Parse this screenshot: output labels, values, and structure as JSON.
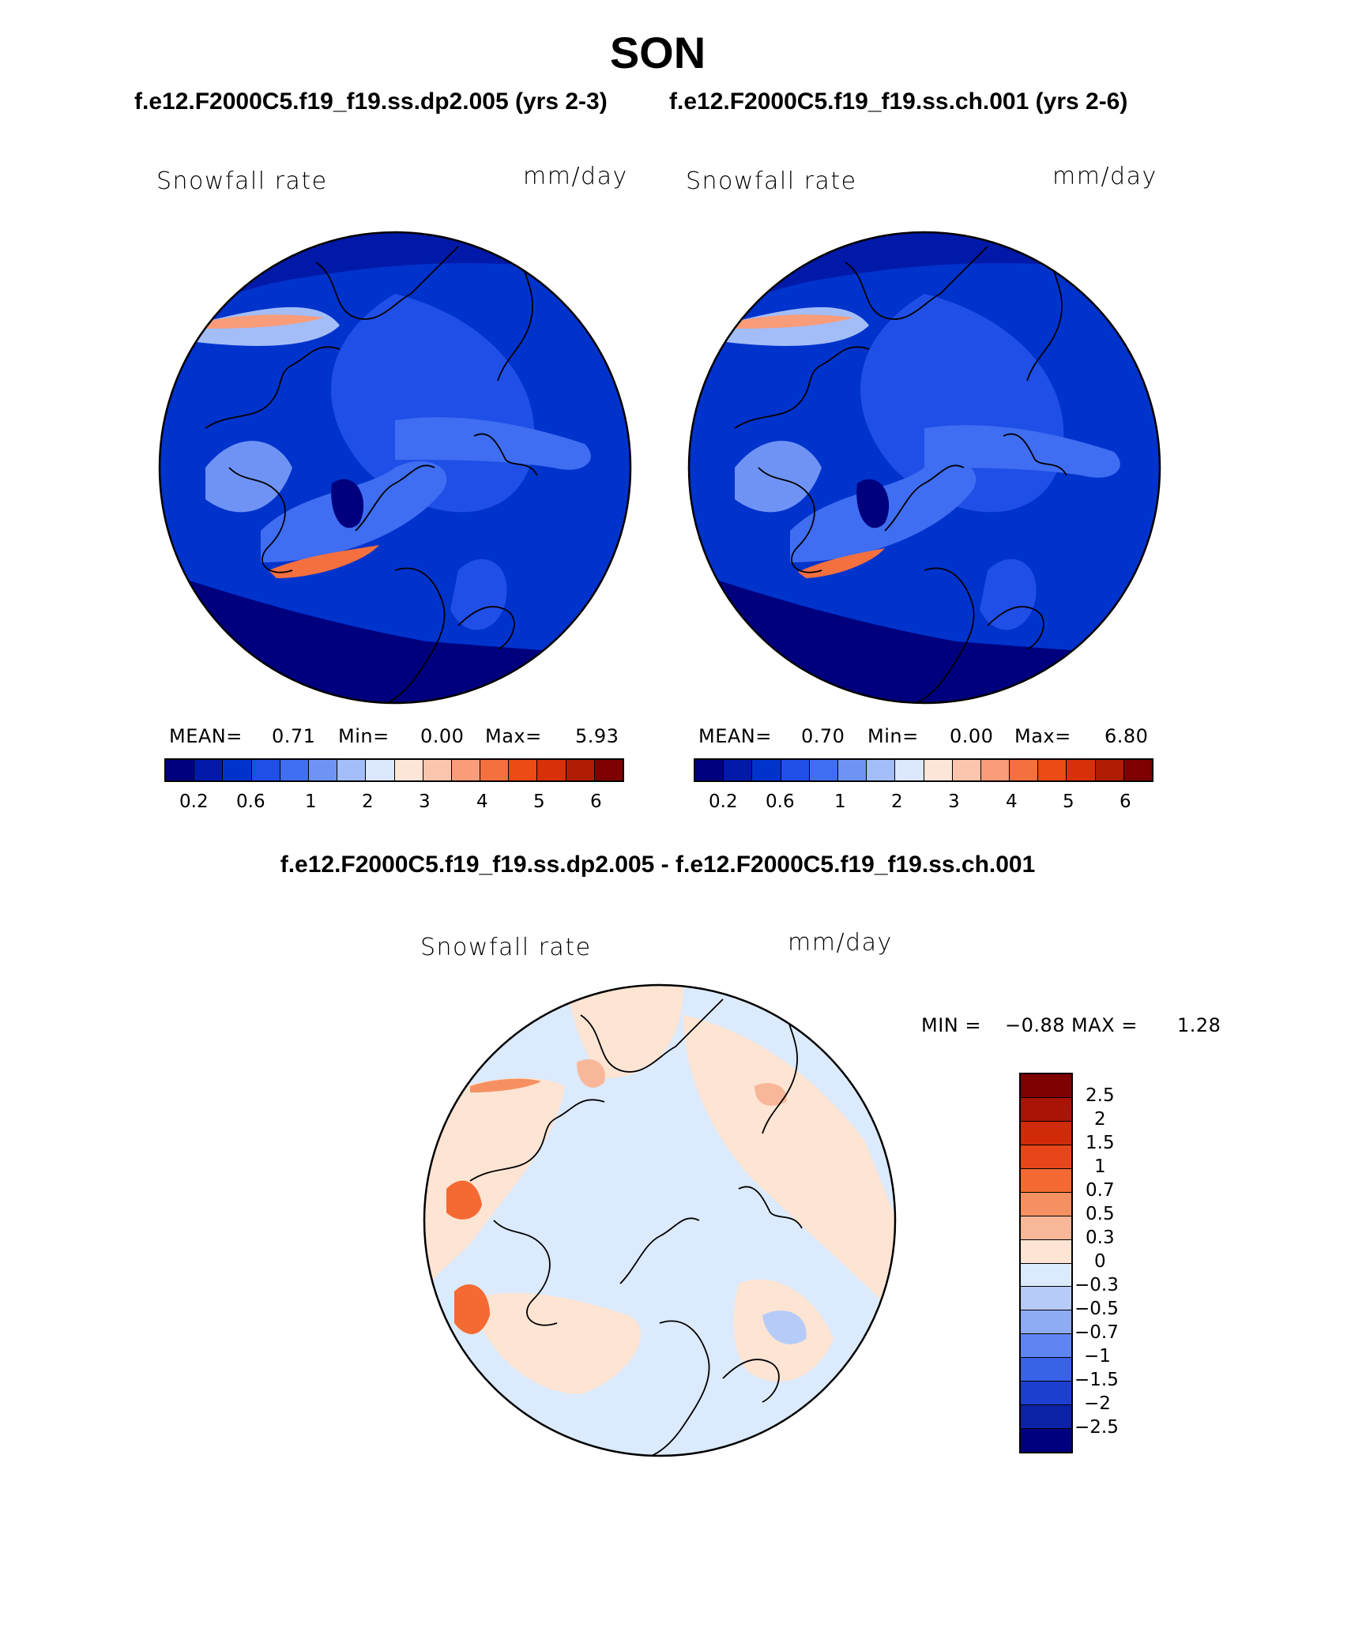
{
  "title": "SON",
  "left_case_title": "f.e12.F2000C5.f19_f19.ss.dp2.005 (yrs 2-3)",
  "right_case_title": "f.e12.F2000C5.f19_f19.ss.ch.001 (yrs 2-6)",
  "diff_title": "f.e12.F2000C5.f19_f19.ss.dp2.005 - f.e12.F2000C5.f19_f19.ss.ch.001",
  "panels": {
    "left": {
      "variable": "Snowfall rate",
      "units": "mm/day",
      "mean_label": "MEAN=",
      "mean_value": "0.71",
      "min_label": "Min=",
      "min_value": "0.00",
      "max_label": "Max=",
      "max_value": "5.93"
    },
    "right": {
      "variable": "Snowfall rate",
      "units": "mm/day",
      "mean_label": "MEAN=",
      "mean_value": "0.70",
      "min_label": "Min=",
      "min_value": "0.00",
      "max_label": "Max=",
      "max_value": "6.80"
    },
    "diff": {
      "variable": "Snowfall rate",
      "units": "mm/day",
      "min_label": "MIN =",
      "min_value": "−0.88",
      "max_label": "MAX =",
      "max_value": "1.28"
    }
  },
  "colorbar_abs": {
    "colors": [
      "#00007f",
      "#0019a8",
      "#0033cc",
      "#1f4fe6",
      "#3f6ef2",
      "#6f93f5",
      "#a3bdf8",
      "#dbe8fd",
      "#fde6d8",
      "#fbc4ad",
      "#f89c7a",
      "#f4703f",
      "#ec4a16",
      "#d83008",
      "#b01d05",
      "#7f0000"
    ],
    "tick_labels": [
      "0.2",
      "0.6",
      "1",
      "2",
      "3",
      "4",
      "5",
      "6"
    ]
  },
  "colorbar_diff": {
    "colors": [
      "#7f0000",
      "#a81506",
      "#d02a09",
      "#e8451a",
      "#f46a32",
      "#f69062",
      "#f9b79a",
      "#fde4d3",
      "#dbeafc",
      "#b6cbf8",
      "#8fabf4",
      "#5f86f0",
      "#3a62e6",
      "#1d3fcf",
      "#0b22a6",
      "#00007f"
    ],
    "tick_labels": [
      "2.5",
      "2",
      "1.5",
      "1",
      "0.7",
      "0.5",
      "0.3",
      "0",
      "−0.3",
      "−0.5",
      "−0.7",
      "−1",
      "−1.5",
      "−2",
      "−2.5"
    ]
  }
}
